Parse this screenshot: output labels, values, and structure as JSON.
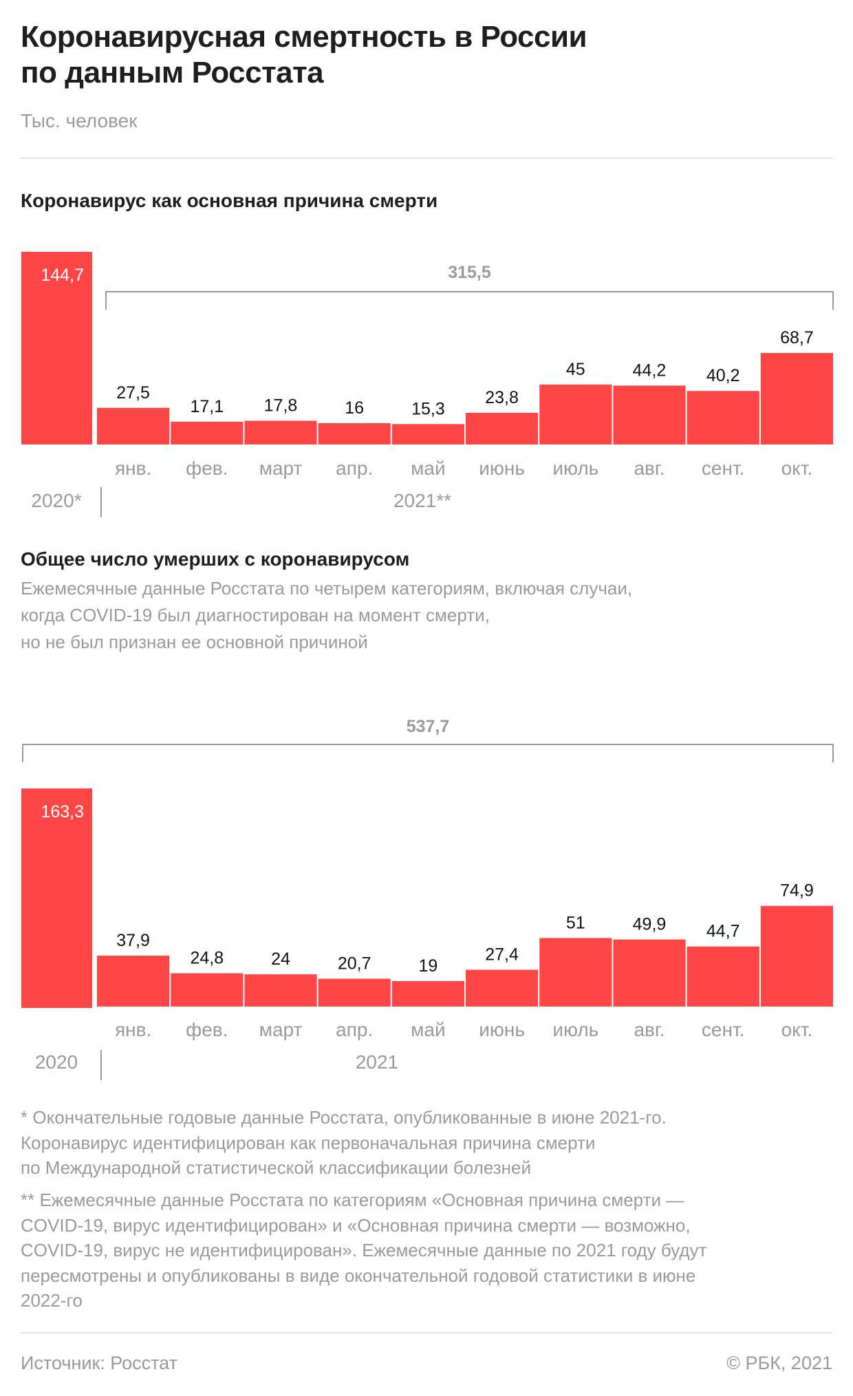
{
  "header": {
    "title_line1": "Коронавирусная смертность в России",
    "title_line2": "по данным Росстата",
    "unit": "Тыс. человек"
  },
  "colors": {
    "bar": "#ff4646",
    "bracket": "#999999",
    "muted": "#9a9a9a"
  },
  "chart_data": [
    {
      "type": "bar",
      "title": "Коронавирус как основная причина смерти",
      "categories": [
        "",
        "янв.",
        "фев.",
        "март",
        "апр.",
        "май",
        "июнь",
        "июль",
        "авг.",
        "сент.",
        "окт."
      ],
      "values": [
        144.7,
        27.5,
        17.1,
        17.8,
        16,
        15.3,
        23.8,
        45,
        44.2,
        40.2,
        68.7
      ],
      "value_labels": [
        "144,7",
        "27,5",
        "17,1",
        "17,8",
        "16",
        "15,3",
        "23,8",
        "45",
        "44,2",
        "40,2",
        "68,7"
      ],
      "group_labels": [
        "2020*",
        "2021**"
      ],
      "bracket": {
        "label": "315,5",
        "from": "янв.",
        "to": "окт."
      },
      "xlabel": "",
      "ylabel": "Тыс. человек",
      "grid": false
    },
    {
      "type": "bar",
      "title": "Общее число умерших с коронавирусом",
      "subtitle_lines": [
        "Ежемесячные данные Росстата по четырем категориям, включая случаи,",
        "когда COVID-19 был диагностирован на момент смерти,",
        "но не был признан ее основной причиной"
      ],
      "categories": [
        "",
        "янв.",
        "фев.",
        "март",
        "апр.",
        "май",
        "июнь",
        "июль",
        "авг.",
        "сент.",
        "окт."
      ],
      "values": [
        163.3,
        37.9,
        24.8,
        24,
        20.7,
        19,
        27.4,
        51,
        49.9,
        44.7,
        74.9
      ],
      "value_labels": [
        "163,3",
        "37,9",
        "24,8",
        "24",
        "20,7",
        "19",
        "27,4",
        "51",
        "49,9",
        "44,7",
        "74,9"
      ],
      "group_labels": [
        "2020",
        "2021"
      ],
      "bracket": {
        "label": "537,7",
        "from": "2020",
        "to": "окт."
      },
      "xlabel": "",
      "ylabel": "Тыс. человек",
      "grid": false
    }
  ],
  "footnotes": {
    "note1_lines": [
      "* Окончательные годовые данные Росстата, опубликованные в июне 2021-го.",
      "Коронавирус идентифицирован как первоначальная причина смерти",
      "по Международной статистической классификации болезней"
    ],
    "note2_lines": [
      "** Ежемесячные данные Росстата по категориям «Основная причина смерти —",
      "COVID-19, вирус идентифицирован» и «Основная причина смерти  — возможно,",
      "COVID-19, вирус не идентифицирован». Ежемесячные данные по 2021 году будут",
      "пересмотрены и опубликованы в виде окончательной годовой статистики в июне",
      "2022-го"
    ]
  },
  "footer": {
    "source": "Источник: Росстат",
    "copyright": "© РБК, 2021"
  }
}
